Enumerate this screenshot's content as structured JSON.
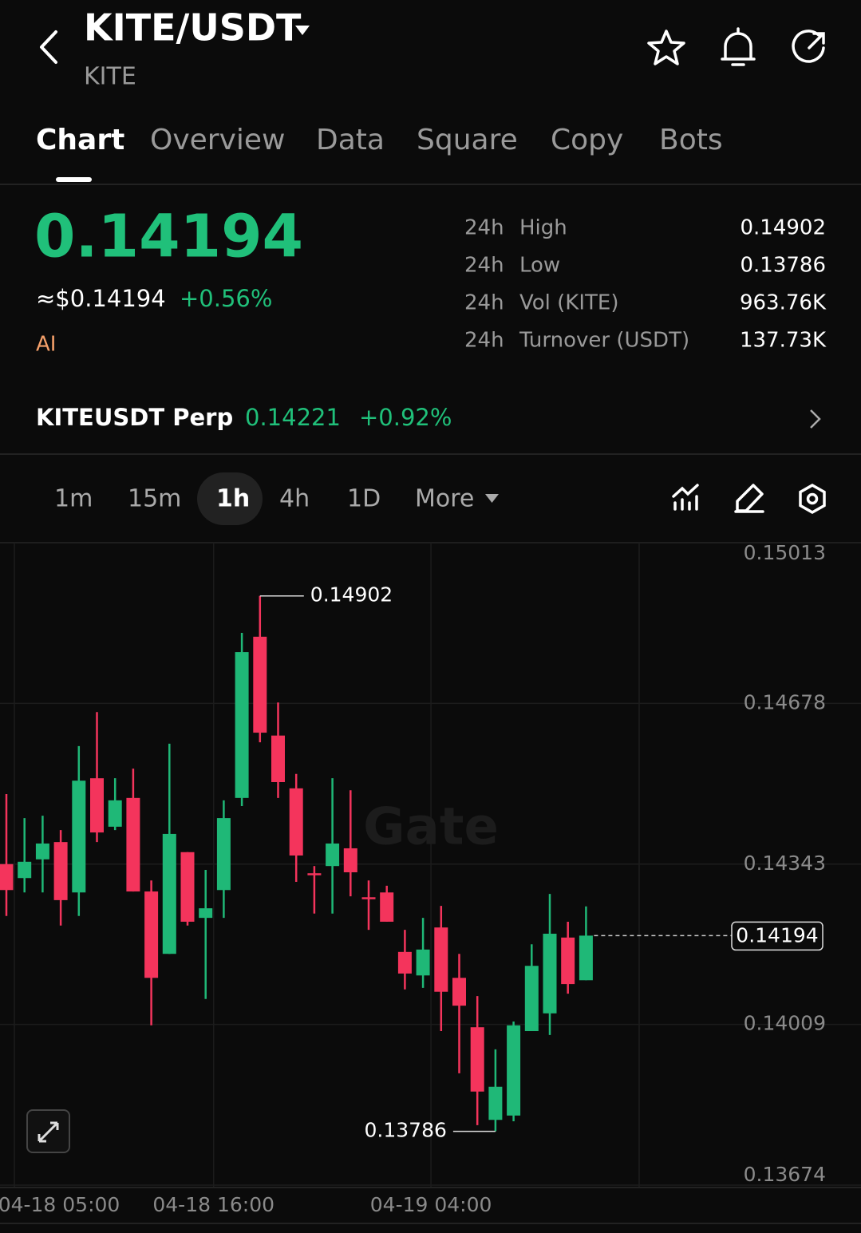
{
  "header": {
    "title": "KITE/USDT",
    "subtitle": "KITE"
  },
  "tabs": {
    "items": [
      "Chart",
      "Overview",
      "Data",
      "Square",
      "Copy",
      "Bots"
    ],
    "active": 0
  },
  "ticker": {
    "price": "0.14194",
    "usd_price": "≈$0.14194",
    "change": "+0.56%",
    "tag": "AI"
  },
  "stats": {
    "rows": [
      {
        "period": "24h",
        "label": "High",
        "value": "0.14902"
      },
      {
        "period": "24h",
        "label": "Low",
        "value": "0.13786"
      },
      {
        "period": "24h",
        "label": "Vol (KITE)",
        "value": "963.76K"
      },
      {
        "period": "24h",
        "label": "Turnover (USDT)",
        "value": "137.73K"
      }
    ]
  },
  "perp": {
    "name": "KITEUSDT Perp",
    "price": "0.14221",
    "change": "+0.92%"
  },
  "intervals": {
    "items": [
      "1m",
      "15m",
      "1h",
      "4h",
      "1D",
      "More"
    ],
    "active": 2
  },
  "chart_data": {
    "type": "candlestick",
    "watermark": "Gate",
    "categories": [
      "04-18 05:00",
      null,
      null,
      null,
      null,
      null,
      null,
      null,
      null,
      null,
      null,
      "04-18 16:00",
      null,
      null,
      null,
      null,
      null,
      null,
      null,
      null,
      null,
      null,
      null,
      "04-19 04:00",
      null,
      null,
      null,
      null,
      null,
      null,
      null,
      null,
      null
    ],
    "open": [
      0.14343,
      0.14314,
      0.14353,
      0.14389,
      0.14284,
      0.14522,
      0.14421,
      0.14481,
      0.14286,
      0.14156,
      0.14368,
      0.14231,
      0.14289,
      0.14481,
      0.14817,
      0.14611,
      0.14501,
      0.14324,
      0.14339,
      0.14376,
      0.14274,
      0.14284,
      0.1416,
      0.14111,
      0.14211,
      0.14106,
      0.14003,
      0.1381,
      0.13819,
      0.13995,
      0.14032,
      0.1419,
      0.14101
    ],
    "high": [
      0.14489,
      0.14439,
      0.14444,
      0.14414,
      0.14589,
      0.1466,
      0.14522,
      0.14542,
      0.14309,
      0.14594,
      0.14368,
      0.14331,
      0.14476,
      0.14825,
      0.14902,
      0.1468,
      0.14531,
      0.14339,
      0.14522,
      0.14497,
      0.14309,
      0.14298,
      0.14206,
      0.14231,
      0.14256,
      0.14156,
      0.14068,
      0.13957,
      0.14015,
      0.14176,
      0.14281,
      0.14223,
      0.14255
    ],
    "low": [
      0.14235,
      0.14284,
      0.14284,
      0.14215,
      0.14235,
      0.14389,
      0.14414,
      0.14286,
      0.14007,
      0.14156,
      0.14215,
      0.14062,
      0.14231,
      0.14464,
      0.14597,
      0.14481,
      0.14306,
      0.1424,
      0.1424,
      0.14276,
      0.14206,
      0.14223,
      0.14082,
      0.14085,
      0.13995,
      0.13907,
      0.13799,
      0.13786,
      0.13807,
      0.13995,
      0.13987,
      0.14073,
      0.14101
    ],
    "close": [
      0.14289,
      0.14348,
      0.14386,
      0.14268,
      0.14517,
      0.14409,
      0.14476,
      0.14286,
      0.14106,
      0.14406,
      0.14223,
      0.14251,
      0.14439,
      0.14785,
      0.14617,
      0.14514,
      0.14361,
      0.14321,
      0.14386,
      0.14326,
      0.14271,
      0.14223,
      0.14115,
      0.14165,
      0.14077,
      0.14048,
      0.13869,
      0.13879,
      0.14007,
      0.14131,
      0.14198,
      0.14093,
      0.14194
    ],
    "up_color": "#1fb877",
    "down_color": "#f4345c",
    "ylim": [
      0.13674,
      0.15013
    ],
    "yticks": [
      0.15013,
      0.14678,
      0.14343,
      0.14009,
      0.13674
    ],
    "annotations": {
      "high": 0.14902,
      "low": 0.13786,
      "last": 0.14194
    }
  }
}
